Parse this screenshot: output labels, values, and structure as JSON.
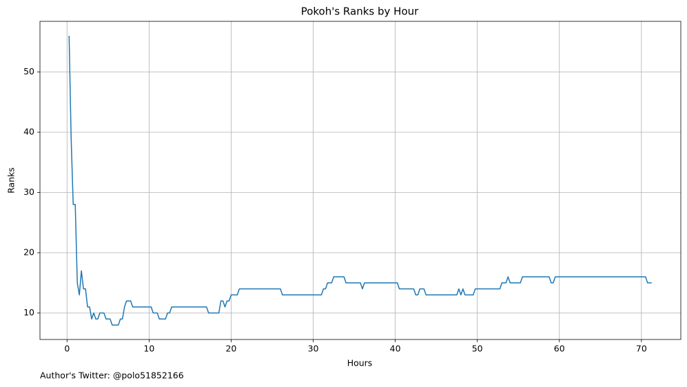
{
  "chart_data": {
    "type": "line",
    "title": "Pokoh's Ranks by Hour",
    "x_label": "Hours",
    "y_label": "Ranks",
    "footer": "Author's Twitter: @polo51852166",
    "x": [
      0.25,
      0.5,
      0.75,
      1.0,
      1.25,
      1.5,
      1.75,
      2.0,
      2.25,
      2.5,
      2.75,
      3.0,
      3.25,
      3.5,
      3.75,
      4.0,
      4.5,
      4.75,
      5.25,
      5.5,
      6.25,
      6.5,
      6.75,
      7.0,
      7.25,
      7.75,
      8.0,
      10.25,
      10.5,
      11.0,
      11.25,
      12.0,
      12.25,
      12.5,
      12.75,
      17.0,
      17.25,
      18.5,
      18.75,
      19.0,
      19.25,
      19.5,
      19.75,
      20.0,
      20.75,
      21.0,
      26.0,
      26.25,
      31.0,
      31.25,
      31.5,
      31.75,
      32.25,
      32.5,
      33.75,
      34.0,
      35.75,
      36.0,
      36.25,
      40.25,
      40.5,
      42.25,
      42.5,
      42.75,
      43.0,
      43.5,
      43.75,
      47.5,
      47.75,
      48.0,
      48.25,
      48.5,
      49.5,
      49.75,
      52.75,
      53.0,
      53.5,
      53.75,
      54.0,
      55.25,
      55.5,
      58.75,
      59.0,
      59.25,
      59.5,
      70.5,
      70.75,
      71.25
    ],
    "series": [
      {
        "name": "Ranks",
        "color": "#1f77b4",
        "values": [
          56,
          39,
          28,
          28,
          15,
          13,
          17,
          14,
          14,
          11,
          11,
          9,
          10,
          9,
          9,
          10,
          10,
          9,
          9,
          8,
          8,
          9,
          9,
          11,
          12,
          12,
          11,
          11,
          10,
          10,
          9,
          9,
          10,
          10,
          11,
          11,
          10,
          10,
          12,
          12,
          11,
          12,
          12,
          13,
          13,
          14,
          14,
          13,
          13,
          14,
          14,
          15,
          15,
          16,
          16,
          15,
          15,
          14,
          15,
          15,
          14,
          14,
          13,
          13,
          14,
          14,
          13,
          13,
          14,
          13,
          14,
          13,
          13,
          14,
          14,
          15,
          15,
          16,
          15,
          15,
          16,
          16,
          15,
          15,
          16,
          16,
          15,
          15
        ]
      }
    ],
    "xlim": [
      -3.3,
      74.8
    ],
    "ylim": [
      5.6,
      58.4
    ],
    "xticks": [
      0,
      10,
      20,
      30,
      40,
      50,
      60,
      70
    ],
    "yticks": [
      10,
      20,
      30,
      40,
      50
    ],
    "grid": true
  }
}
